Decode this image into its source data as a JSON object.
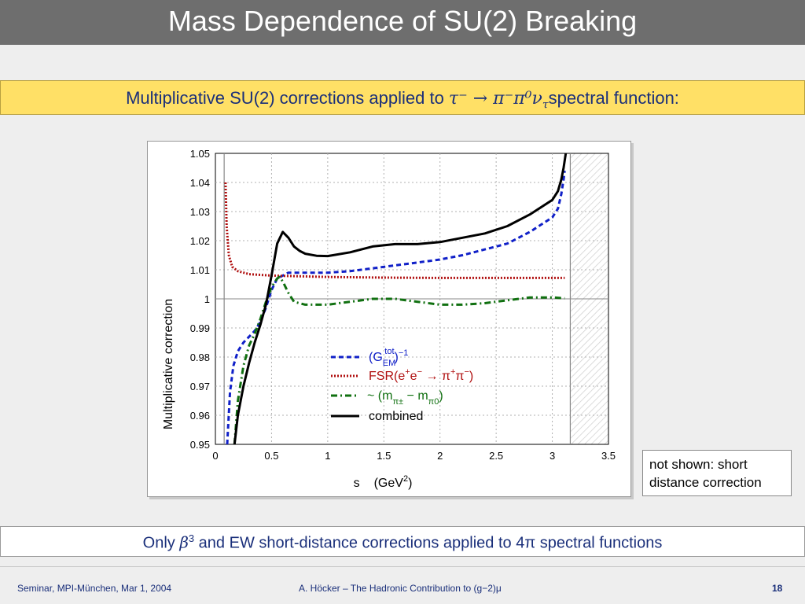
{
  "slide": {
    "title": "Mass Dependence of SU(2) Breaking",
    "subtitle_prefix": "Multiplicative SU(2) corrections applied to ",
    "subtitle_process": "τ⁻ → π⁻π⁰ν",
    "subtitle_process_sub": "τ",
    "subtitle_suffix": "spectral function:",
    "note": [
      "not shown: short",
      "distance correction"
    ],
    "bottom_prefix": "Only ",
    "bottom_beta": "β",
    "bottom_beta_exp": "3",
    "bottom_suffix": " and EW short-distance corrections applied to 4π spectral functions",
    "footer_left": "Seminar, MPI-München, Mar 1, 2004",
    "footer_center": "A. Höcker – The Hadronic Contribution to (g−2)μ",
    "page_number": "18"
  },
  "chart_data": {
    "type": "line",
    "title": "",
    "xlabel": "s    (GeV²)",
    "ylabel": "Multiplicative correction",
    "xlim": [
      0,
      3.5
    ],
    "ylim": [
      0.95,
      1.05
    ],
    "xticks": [
      "0",
      "0.5",
      "1",
      "1.5",
      "2",
      "2.5",
      "3",
      "3.5"
    ],
    "yticks": [
      "0.95",
      "0.96",
      "0.97",
      "0.98",
      "0.99",
      "1",
      "1.01",
      "1.02",
      "1.03",
      "1.04",
      "1.05"
    ],
    "grid": true,
    "legend_position": "center",
    "shaded_region_x": [
      3.16,
      3.5
    ],
    "vertical_lines_x": [
      0.078,
      3.16
    ],
    "series": [
      {
        "name": "(G_EM^tot)^−1",
        "color": "#1020c8",
        "style": "dashed",
        "points": [
          [
            0.105,
            0.95
          ],
          [
            0.13,
            0.968
          ],
          [
            0.16,
            0.977
          ],
          [
            0.2,
            0.982
          ],
          [
            0.25,
            0.985
          ],
          [
            0.3,
            0.987
          ],
          [
            0.35,
            0.989
          ],
          [
            0.4,
            0.992
          ],
          [
            0.45,
            0.997
          ],
          [
            0.5,
            1.003
          ],
          [
            0.55,
            1.007
          ],
          [
            0.6,
            1.008
          ],
          [
            0.65,
            1.009
          ],
          [
            0.7,
            1.009
          ],
          [
            0.8,
            1.009
          ],
          [
            1.0,
            1.009
          ],
          [
            1.2,
            1.0095
          ],
          [
            1.4,
            1.0105
          ],
          [
            1.6,
            1.0115
          ],
          [
            1.8,
            1.0125
          ],
          [
            2.0,
            1.0135
          ],
          [
            2.2,
            1.015
          ],
          [
            2.4,
            1.017
          ],
          [
            2.6,
            1.019
          ],
          [
            2.8,
            1.023
          ],
          [
            3.0,
            1.028
          ],
          [
            3.05,
            1.031
          ],
          [
            3.08,
            1.036
          ],
          [
            3.1,
            1.041
          ],
          [
            3.11,
            1.044
          ]
        ]
      },
      {
        "name": "FSR(e⁺e⁻→π⁺π⁻)",
        "color": "#b01010",
        "style": "dotted",
        "points": [
          [
            0.09,
            1.04
          ],
          [
            0.1,
            1.025
          ],
          [
            0.12,
            1.015
          ],
          [
            0.15,
            1.011
          ],
          [
            0.2,
            1.0095
          ],
          [
            0.3,
            1.0085
          ],
          [
            0.5,
            1.008
          ],
          [
            1.0,
            1.0075
          ],
          [
            1.5,
            1.0073
          ],
          [
            2.0,
            1.0072
          ],
          [
            2.5,
            1.0072
          ],
          [
            3.0,
            1.0072
          ],
          [
            3.11,
            1.0072
          ]
        ]
      },
      {
        "name": "~(m_π± − m_π0)",
        "color": "#107010",
        "style": "dashdot",
        "points": [
          [
            0.17,
            0.95
          ],
          [
            0.2,
            0.965
          ],
          [
            0.25,
            0.977
          ],
          [
            0.3,
            0.984
          ],
          [
            0.35,
            0.988
          ],
          [
            0.4,
            0.993
          ],
          [
            0.45,
            0.999
          ],
          [
            0.5,
            1.004
          ],
          [
            0.55,
            1.007
          ],
          [
            0.57,
            1.0075
          ],
          [
            0.6,
            1.006
          ],
          [
            0.65,
            1.002
          ],
          [
            0.7,
            0.999
          ],
          [
            0.8,
            0.998
          ],
          [
            1.0,
            0.998
          ],
          [
            1.2,
            0.999
          ],
          [
            1.4,
            1.0
          ],
          [
            1.6,
            1.0
          ],
          [
            1.8,
            0.999
          ],
          [
            2.0,
            0.998
          ],
          [
            2.2,
            0.998
          ],
          [
            2.4,
            0.9985
          ],
          [
            2.6,
            0.9995
          ],
          [
            2.8,
            1.0005
          ],
          [
            3.0,
            1.0005
          ],
          [
            3.11,
            1.0002
          ]
        ]
      },
      {
        "name": "combined",
        "color": "#000000",
        "style": "solid",
        "points": [
          [
            0.17,
            0.95
          ],
          [
            0.2,
            0.96
          ],
          [
            0.25,
            0.97
          ],
          [
            0.3,
            0.978
          ],
          [
            0.35,
            0.985
          ],
          [
            0.4,
            0.991
          ],
          [
            0.45,
            0.998
          ],
          [
            0.5,
            1.008
          ],
          [
            0.55,
            1.019
          ],
          [
            0.6,
            1.023
          ],
          [
            0.65,
            1.021
          ],
          [
            0.7,
            1.018
          ],
          [
            0.75,
            1.0165
          ],
          [
            0.8,
            1.0155
          ],
          [
            0.9,
            1.0148
          ],
          [
            1.0,
            1.0147
          ],
          [
            1.2,
            1.016
          ],
          [
            1.4,
            1.018
          ],
          [
            1.6,
            1.0188
          ],
          [
            1.8,
            1.0188
          ],
          [
            2.0,
            1.0195
          ],
          [
            2.2,
            1.021
          ],
          [
            2.4,
            1.0225
          ],
          [
            2.6,
            1.025
          ],
          [
            2.8,
            1.029
          ],
          [
            3.0,
            1.034
          ],
          [
            3.05,
            1.037
          ],
          [
            3.08,
            1.041
          ],
          [
            3.1,
            1.045
          ],
          [
            3.12,
            1.05
          ]
        ]
      }
    ]
  }
}
